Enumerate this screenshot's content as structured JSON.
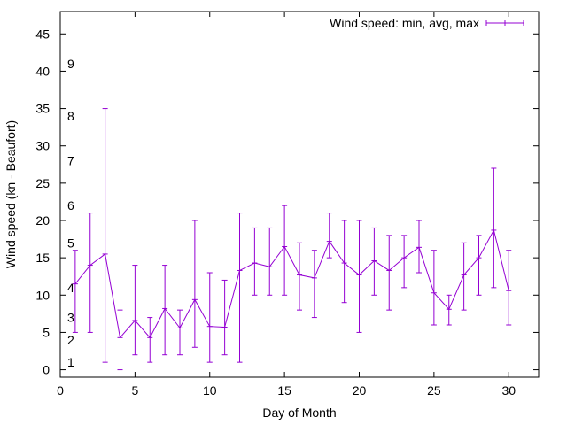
{
  "chart_data": {
    "type": "line",
    "xlabel": "Day of Month",
    "ylabel": "Wind speed (kn - Beaufort)",
    "xlim": [
      0,
      32
    ],
    "ylim": [
      -1,
      48
    ],
    "x_ticks": [
      0,
      5,
      10,
      15,
      20,
      25,
      30
    ],
    "y_ticks": [
      0,
      5,
      10,
      15,
      20,
      25,
      30,
      35,
      40,
      45
    ],
    "grid": false,
    "legend_position": "top-right",
    "series": [
      {
        "name": "Wind speed: min, avg, max",
        "color": "#9400d3",
        "style": "errorbars",
        "x": [
          1,
          2,
          3,
          4,
          5,
          6,
          7,
          8,
          9,
          10,
          11,
          12,
          13,
          14,
          15,
          16,
          17,
          18,
          19,
          20,
          21,
          22,
          23,
          24,
          25,
          26,
          27,
          28,
          29,
          30
        ],
        "avg": [
          11.5,
          14,
          15.5,
          4.3,
          6.6,
          4.3,
          8.2,
          5.6,
          9.4,
          5.8,
          5.7,
          13.3,
          14.3,
          13.8,
          16.5,
          12.7,
          12.3,
          17.2,
          14.3,
          12.7,
          14.6,
          13.3,
          15,
          16.4,
          10.3,
          8.1,
          12.7,
          15,
          18.7,
          10.6
        ],
        "min": [
          5,
          5,
          1,
          0,
          2,
          1,
          2,
          2,
          3,
          1,
          2,
          1,
          10,
          10,
          10,
          8,
          7,
          15,
          9,
          5,
          10,
          8,
          11,
          13,
          6,
          6,
          8,
          10,
          11,
          6
        ],
        "max": [
          16,
          21,
          35,
          8,
          14,
          7,
          14,
          8,
          20,
          13,
          12,
          21,
          19,
          19,
          22,
          17,
          16,
          21,
          20,
          20,
          19,
          18,
          18,
          20,
          16,
          10,
          17,
          18,
          27,
          16
        ]
      }
    ],
    "annotations": [
      {
        "text": "1",
        "y": 1
      },
      {
        "text": "2",
        "y": 4
      },
      {
        "text": "3",
        "y": 7
      },
      {
        "text": "4",
        "y": 11
      },
      {
        "text": "5",
        "y": 17
      },
      {
        "text": "6",
        "y": 22
      },
      {
        "text": "7",
        "y": 28
      },
      {
        "text": "8",
        "y": 34
      },
      {
        "text": "9",
        "y": 41
      }
    ]
  }
}
